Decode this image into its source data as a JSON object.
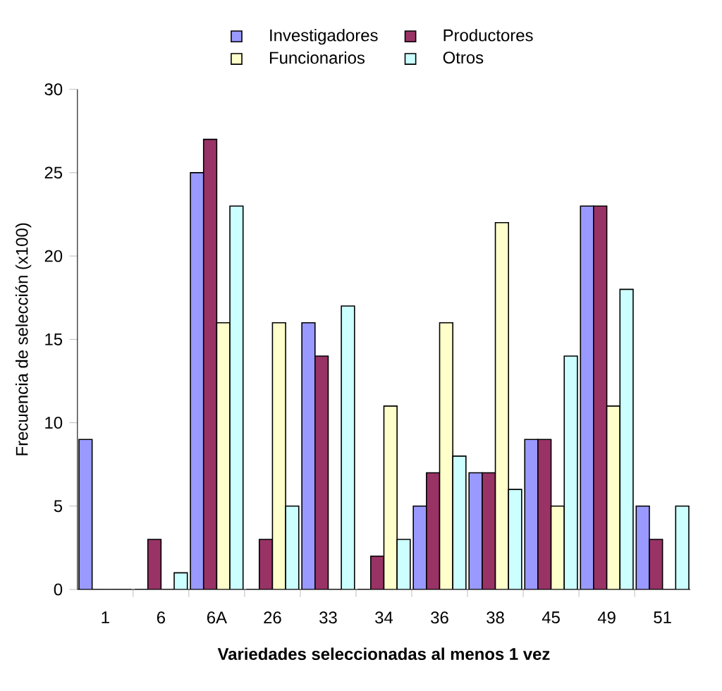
{
  "chart_data": {
    "type": "bar",
    "xlabel": "Variedades seleccionadas al menos 1 vez",
    "ylabel": "Frecuencia de selección (x100)",
    "categories": [
      "1",
      "6",
      "6A",
      "26",
      "33",
      "34",
      "36",
      "38",
      "45",
      "49",
      "51"
    ],
    "series": [
      {
        "name": "Investigadores",
        "color": "#9999ff",
        "values": [
          9,
          0,
          25,
          0,
          16,
          0,
          5,
          7,
          9,
          23,
          5
        ]
      },
      {
        "name": "Productores",
        "color": "#993366",
        "values": [
          0,
          3,
          27,
          3,
          14,
          2,
          7,
          7,
          9,
          23,
          3
        ]
      },
      {
        "name": "Funcionarios",
        "color": "#ffffcc",
        "values": [
          0,
          0,
          16,
          16,
          0,
          11,
          16,
          22,
          5,
          11,
          0
        ]
      },
      {
        "name": "Otros",
        "color": "#ccffff",
        "values": [
          0,
          1,
          23,
          5,
          17,
          3,
          8,
          6,
          14,
          18,
          5
        ]
      }
    ],
    "ylim": [
      0,
      30
    ],
    "yticks": [
      0,
      5,
      10,
      15,
      20,
      25,
      30
    ],
    "legend": "top"
  }
}
